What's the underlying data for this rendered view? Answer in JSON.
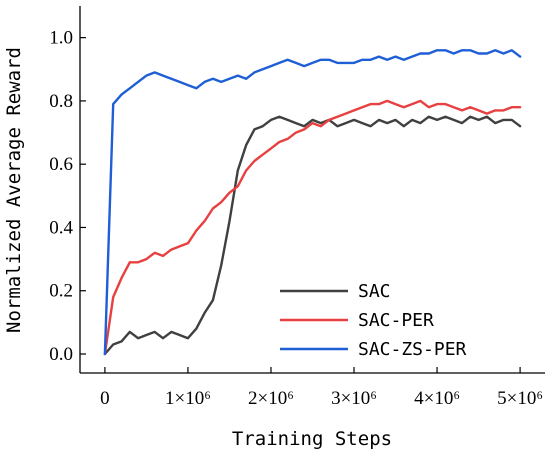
{
  "chart_data": {
    "type": "line",
    "xlabel": "Training Steps",
    "ylabel": "Normalized Average Reward",
    "xlim": [
      -300000,
      5300000
    ],
    "ylim": [
      -0.06,
      1.1
    ],
    "x_ticks": [
      0,
      1000000,
      2000000,
      3000000,
      4000000,
      5000000
    ],
    "x_tick_labels": [
      "0",
      "1×10⁶",
      "2×10⁶",
      "3×10⁶",
      "4×10⁶",
      "5×10⁶"
    ],
    "y_ticks": [
      0.0,
      0.2,
      0.4,
      0.6,
      0.8,
      1.0
    ],
    "y_tick_labels": [
      "0.0",
      "0.2",
      "0.4",
      "0.6",
      "0.8",
      "1.0"
    ],
    "grid": false,
    "legend_position": "bottom-right",
    "x": [
      0,
      100000,
      200000,
      300000,
      400000,
      500000,
      600000,
      700000,
      800000,
      900000,
      1000000,
      1100000,
      1200000,
      1300000,
      1400000,
      1500000,
      1600000,
      1700000,
      1800000,
      1900000,
      2000000,
      2100000,
      2200000,
      2300000,
      2400000,
      2500000,
      2600000,
      2700000,
      2800000,
      2900000,
      3000000,
      3100000,
      3200000,
      3300000,
      3400000,
      3500000,
      3600000,
      3700000,
      3800000,
      3900000,
      4000000,
      4100000,
      4200000,
      4300000,
      4400000,
      4500000,
      4600000,
      4700000,
      4800000,
      4900000,
      5000000
    ],
    "series": [
      {
        "name": "SAC",
        "color": "#404040",
        "values": [
          0.0,
          0.03,
          0.04,
          0.07,
          0.05,
          0.06,
          0.07,
          0.05,
          0.07,
          0.06,
          0.05,
          0.08,
          0.13,
          0.17,
          0.28,
          0.42,
          0.58,
          0.66,
          0.71,
          0.72,
          0.74,
          0.75,
          0.74,
          0.73,
          0.72,
          0.74,
          0.73,
          0.74,
          0.72,
          0.73,
          0.74,
          0.73,
          0.72,
          0.74,
          0.73,
          0.74,
          0.72,
          0.74,
          0.73,
          0.75,
          0.74,
          0.75,
          0.74,
          0.73,
          0.75,
          0.74,
          0.75,
          0.73,
          0.74,
          0.74,
          0.72
        ]
      },
      {
        "name": "SAC-PER",
        "color": "#e84040",
        "values": [
          0.0,
          0.18,
          0.24,
          0.29,
          0.29,
          0.3,
          0.32,
          0.31,
          0.33,
          0.34,
          0.35,
          0.39,
          0.42,
          0.46,
          0.48,
          0.51,
          0.53,
          0.58,
          0.61,
          0.63,
          0.65,
          0.67,
          0.68,
          0.7,
          0.71,
          0.73,
          0.72,
          0.74,
          0.75,
          0.76,
          0.77,
          0.78,
          0.79,
          0.79,
          0.8,
          0.79,
          0.78,
          0.79,
          0.8,
          0.78,
          0.79,
          0.79,
          0.78,
          0.77,
          0.78,
          0.77,
          0.76,
          0.77,
          0.77,
          0.78,
          0.78
        ]
      },
      {
        "name": "SAC-ZS-PER",
        "color": "#1f5fd6",
        "values": [
          0.0,
          0.79,
          0.82,
          0.84,
          0.86,
          0.88,
          0.89,
          0.88,
          0.87,
          0.86,
          0.85,
          0.84,
          0.86,
          0.87,
          0.86,
          0.87,
          0.88,
          0.87,
          0.89,
          0.9,
          0.91,
          0.92,
          0.93,
          0.92,
          0.91,
          0.92,
          0.93,
          0.93,
          0.92,
          0.92,
          0.92,
          0.93,
          0.93,
          0.94,
          0.93,
          0.94,
          0.93,
          0.94,
          0.95,
          0.95,
          0.96,
          0.96,
          0.95,
          0.96,
          0.96,
          0.95,
          0.95,
          0.96,
          0.95,
          0.96,
          0.94
        ]
      }
    ]
  }
}
